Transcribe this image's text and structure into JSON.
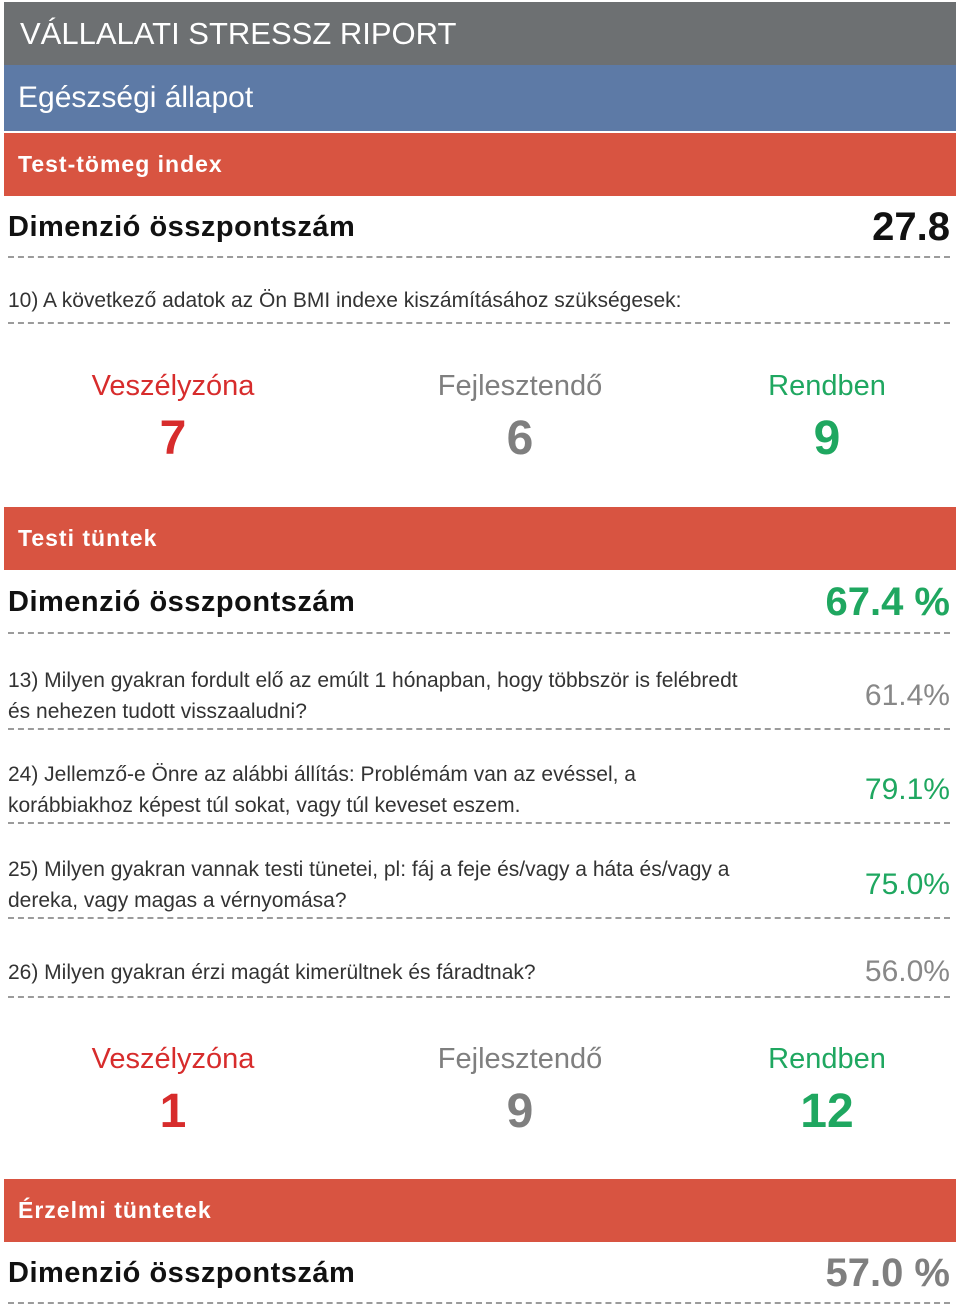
{
  "header": {
    "title": "VÁLLALATI STRESSZ RIPORT",
    "section": "Egészségi állapot"
  },
  "bmi": {
    "title": "Test-tömeg index",
    "dimension_label": "Dimenzió összpontszám",
    "dimension_value": "27.8",
    "question": "10) A következő adatok az Ön BMI indexe kiszámításához szükségesek:",
    "zones": {
      "danger_label": "Veszélyzóna",
      "danger_value": "7",
      "develop_label": "Fejlesztendő",
      "develop_value": "6",
      "ok_label": "Rendben",
      "ok_value": "9"
    }
  },
  "physical": {
    "title": "Testi tüntek",
    "dimension_label": "Dimenzió összpontszám",
    "dimension_value": "67.4 %",
    "questions": [
      {
        "text": "13) Milyen gyakran fordult elő az emúlt 1 hónapban, hogy többször is felébredt és nehezen tudott visszaaludni?",
        "pct": "61.4%"
      },
      {
        "text": "24) Jellemző-e Önre az alábbi állítás: Problémám van az evéssel, a korábbiakhoz képest túl sokat, vagy túl keveset eszem.",
        "pct": "79.1%"
      },
      {
        "text": "25) Milyen gyakran vannak testi tünetei, pl: fáj a feje és/vagy a háta és/vagy a dereka, vagy magas a vérnyomása?",
        "pct": "75.0%"
      },
      {
        "text": "26) Milyen gyakran érzi magát kimerültnek és fáradtnak?",
        "pct": "56.0%"
      }
    ],
    "zones": {
      "danger_label": "Veszélyzóna",
      "danger_value": "1",
      "develop_label": "Fejlesztendő",
      "develop_value": "9",
      "ok_label": "Rendben",
      "ok_value": "12"
    }
  },
  "emotional": {
    "title": "Érzelmi tüntetek",
    "dimension_label": "Dimenzió összpontszám",
    "dimension_value": "57.0 %"
  },
  "colors": {
    "title_bar": "#6d7072",
    "section_bar": "#5d7aa6",
    "sub_bar": "#d85441",
    "danger": "#d72c2c",
    "develop": "#7f7f7f",
    "ok": "#1fa760"
  }
}
